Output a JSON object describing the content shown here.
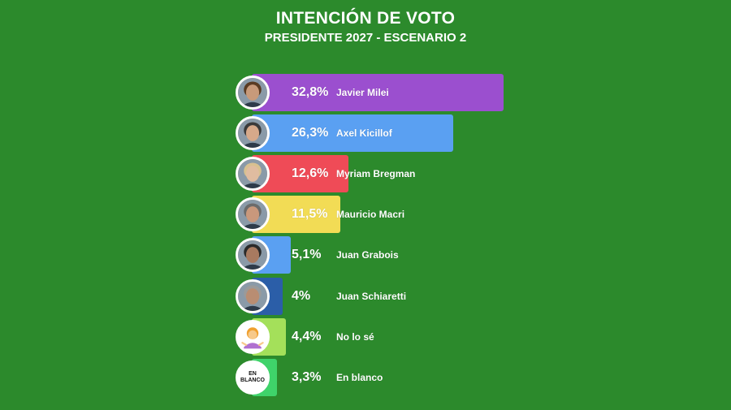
{
  "chart_data": {
    "type": "bar",
    "orientation": "horizontal",
    "title": "INTENCIÓN DE VOTO",
    "subtitle": "PRESIDENTE 2027 - ESCENARIO 2",
    "categories": [
      "Javier Milei",
      "Axel Kicillof",
      "Myriam Bregman",
      "Mauricio Macri",
      "Juan Grabois",
      "Juan Schiaretti",
      "No lo sé",
      "En blanco"
    ],
    "values": [
      32.8,
      26.3,
      12.6,
      11.5,
      5.1,
      4,
      4.4,
      3.3
    ],
    "value_labels": [
      "32,8%",
      "26,3%",
      "12,6%",
      "11,5%",
      "5,1%",
      "4%",
      "4,4%",
      "3,3%"
    ],
    "colors": [
      "#9b4fcf",
      "#5aa0f2",
      "#ef4b57",
      "#f2dc55",
      "#5aa0f2",
      "#2b5ea8",
      "#a4e05a",
      "#3fd36a"
    ],
    "icons": [
      "avatar-photo-icon",
      "avatar-photo-icon",
      "avatar-photo-icon",
      "avatar-photo-icon",
      "avatar-photo-icon",
      "avatar-photo-icon",
      "shrugging-person-icon",
      "en-blanco-badge-icon"
    ],
    "badge_text": [
      "EN",
      "BLANCO"
    ],
    "xlim": [
      0,
      33
    ],
    "grid": false,
    "legend": "none",
    "background": "#2c8a2c"
  }
}
